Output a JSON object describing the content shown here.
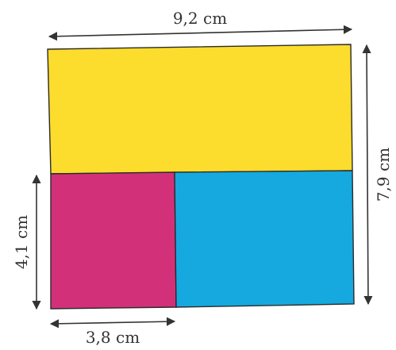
{
  "figure": {
    "regions": [
      {
        "name": "yellow-rectangle",
        "color": "#FCDC2C"
      },
      {
        "name": "magenta-rectangle",
        "color": "#D2317A"
      },
      {
        "name": "cyan-rectangle",
        "color": "#15A9DF"
      }
    ],
    "dimensions": {
      "top_width": "9,2 cm",
      "right_height": "7,9 cm",
      "left_height": "4,1 cm",
      "bottom_width": "3,8 cm"
    }
  }
}
